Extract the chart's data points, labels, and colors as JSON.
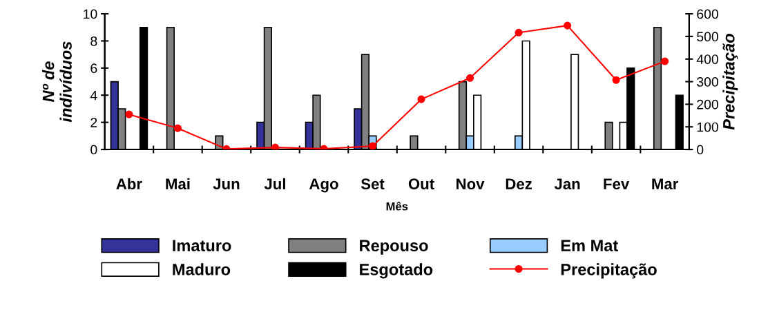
{
  "chart_data": {
    "type": "bar",
    "xlabel": "Mês",
    "ylabel": "Nº de\nindivíduos",
    "y2label": "Precipitação",
    "categories": [
      "Abr",
      "Mai",
      "Jun",
      "Jul",
      "Ago",
      "Set",
      "Out",
      "Nov",
      "Dez",
      "Jan",
      "Fev",
      "Mar"
    ],
    "series": [
      {
        "name": "Imaturo",
        "color": "#333399",
        "values": [
          5,
          null,
          null,
          2,
          2,
          3,
          null,
          null,
          null,
          null,
          null,
          null
        ]
      },
      {
        "name": "Repouso",
        "color": "#808080",
        "values": [
          3,
          9,
          1,
          9,
          4,
          7,
          1,
          5,
          null,
          null,
          2,
          9
        ]
      },
      {
        "name": "Em Mat",
        "color": "#99ccff",
        "values": [
          null,
          null,
          null,
          null,
          null,
          1,
          null,
          1,
          1,
          null,
          null,
          null
        ]
      },
      {
        "name": "Maduro",
        "color": "#ffffff",
        "values": [
          null,
          null,
          null,
          null,
          null,
          null,
          null,
          4,
          8,
          7,
          2,
          null
        ]
      },
      {
        "name": "Esgotado",
        "color": "#000000",
        "values": [
          9,
          null,
          null,
          null,
          null,
          null,
          null,
          null,
          null,
          null,
          6,
          4
        ]
      },
      {
        "name": "Precipitação",
        "type": "line",
        "axis": "y2",
        "color": "#ff0000",
        "marker": "circle",
        "values": [
          155,
          94,
          2,
          9,
          3,
          15,
          222,
          316,
          517,
          548,
          307,
          390
        ]
      }
    ],
    "ylim": [
      0,
      10
    ],
    "yticks": [
      0,
      2,
      4,
      6,
      8,
      10
    ],
    "y2lim": [
      0,
      600
    ],
    "y2ticks": [
      0,
      100,
      200,
      300,
      400,
      500,
      600
    ],
    "grid": false,
    "legend": "bottom"
  }
}
